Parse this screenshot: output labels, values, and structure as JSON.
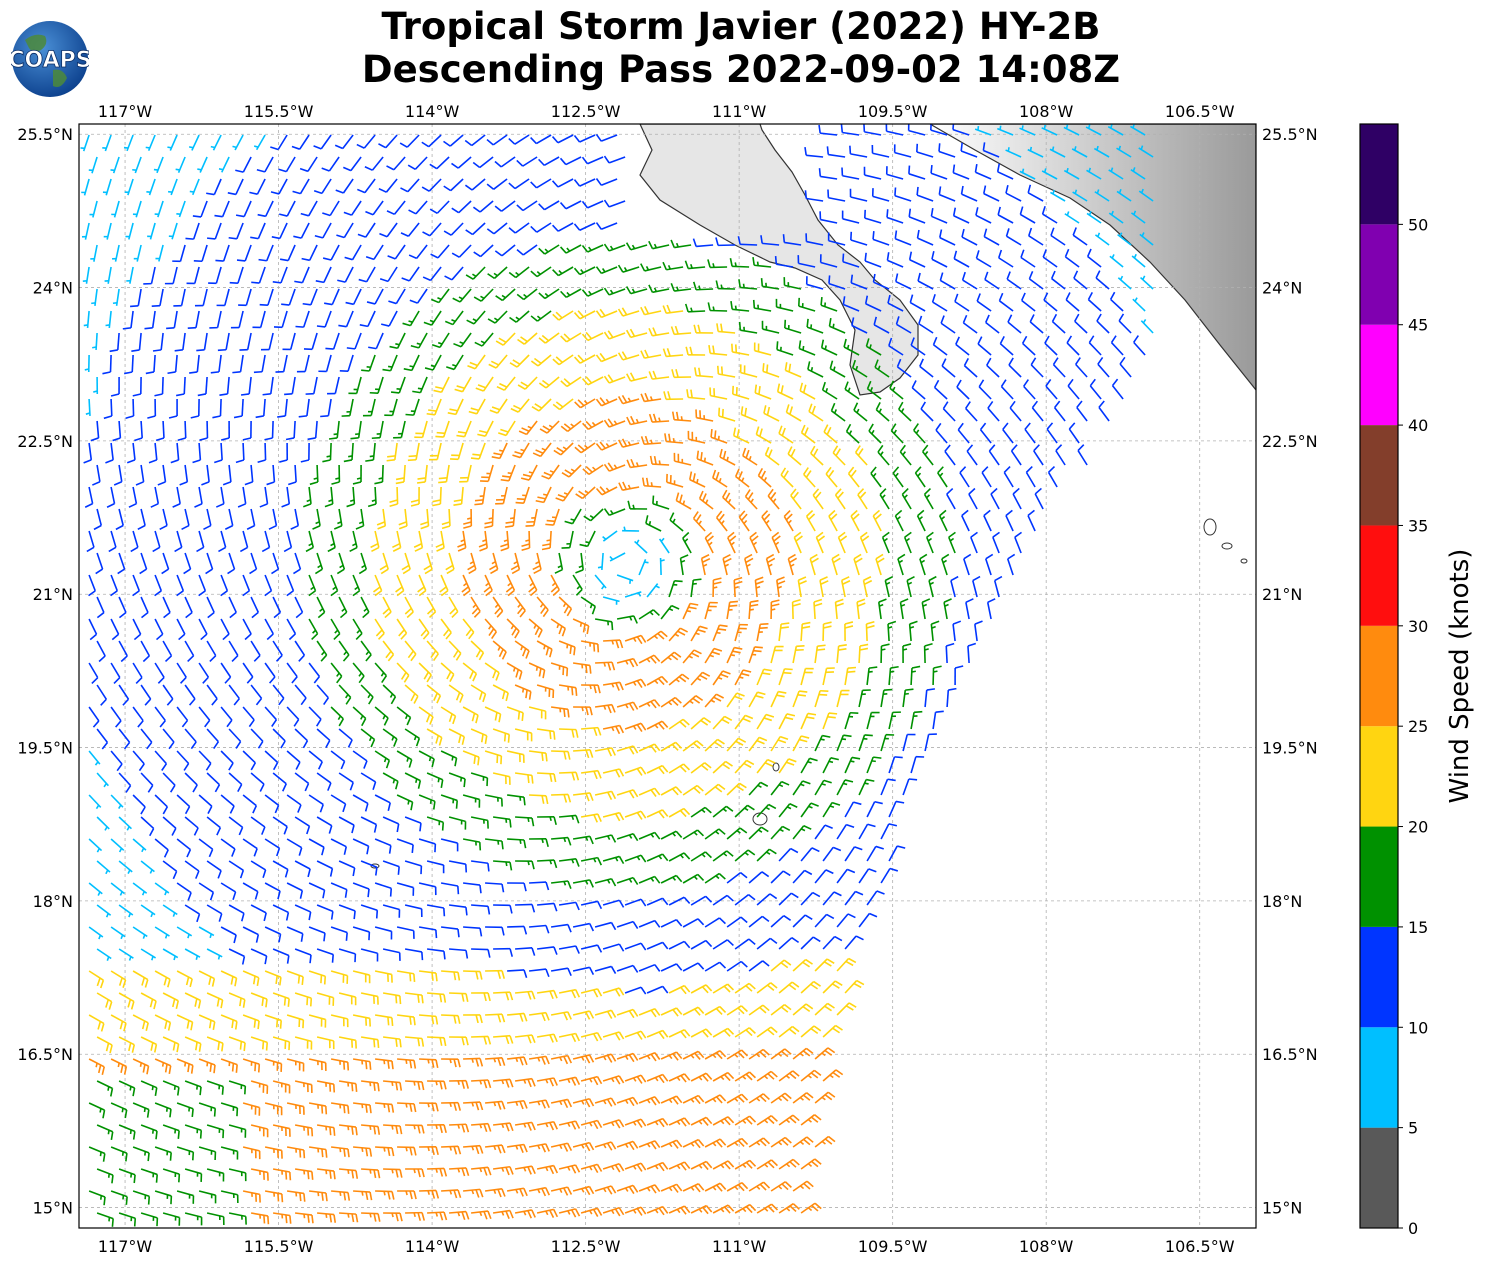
{
  "header": {
    "title_line1": "Tropical Storm Javier (2022) HY-2B",
    "title_line2": "Descending Pass 2022-09-02 14:08Z",
    "logo_text": "COAPS"
  },
  "map": {
    "extent": {
      "lon_min": -117.45,
      "lon_max": -105.95,
      "lat_min": 14.8,
      "lat_max": 25.6
    },
    "lon_ticks": [
      {
        "value": -117.0,
        "label": "117°W"
      },
      {
        "value": -115.5,
        "label": "115.5°W"
      },
      {
        "value": -114.0,
        "label": "114°W"
      },
      {
        "value": -112.5,
        "label": "112.5°W"
      },
      {
        "value": -111.0,
        "label": "111°W"
      },
      {
        "value": -109.5,
        "label": "109.5°W"
      },
      {
        "value": -108.0,
        "label": "108°W"
      },
      {
        "value": -106.5,
        "label": "106.5°W"
      }
    ],
    "lat_ticks": [
      {
        "value": 25.5,
        "label": "25.5°N"
      },
      {
        "value": 24.0,
        "label": "24°N"
      },
      {
        "value": 22.5,
        "label": "22.5°N"
      },
      {
        "value": 21.0,
        "label": "21°N"
      },
      {
        "value": 19.5,
        "label": "19.5°N"
      },
      {
        "value": 18.0,
        "label": "18°N"
      },
      {
        "value": 16.5,
        "label": "16.5°N"
      },
      {
        "value": 15.0,
        "label": "15°N"
      }
    ],
    "gridlines": true,
    "storm_center": {
      "lon": -112.1,
      "lat": 21.3
    },
    "swath_east_edge": [
      [
        -106.9,
        23.5
      ],
      [
        -108.2,
        21.2
      ],
      [
        -109.3,
        19.1
      ],
      [
        -110.0,
        16.8
      ],
      [
        -110.4,
        14.8
      ]
    ],
    "land_color": "#d9d9d9",
    "coast_color": "#333333"
  },
  "colorbar": {
    "label": "Wind Speed (knots)",
    "bins": [
      {
        "from": 0,
        "to": 5,
        "color": "#595959"
      },
      {
        "from": 5,
        "to": 10,
        "color": "#00bfff"
      },
      {
        "from": 10,
        "to": 15,
        "color": "#0035ff"
      },
      {
        "from": 15,
        "to": 20,
        "color": "#009100"
      },
      {
        "from": 20,
        "to": 25,
        "color": "#ffd511"
      },
      {
        "from": 25,
        "to": 30,
        "color": "#ff8b0e"
      },
      {
        "from": 30,
        "to": 35,
        "color": "#ff0e0e"
      },
      {
        "from": 35,
        "to": 40,
        "color": "#833e2b"
      },
      {
        "from": 40,
        "to": 45,
        "color": "#ff00ff"
      },
      {
        "from": 45,
        "to": 50,
        "color": "#8000b0"
      },
      {
        "from": 50,
        "to": 55,
        "color": "#2f0065"
      }
    ],
    "ticks": [
      "0",
      "5",
      "10",
      "15",
      "20",
      "25",
      "30",
      "35",
      "40",
      "45",
      "50"
    ]
  }
}
